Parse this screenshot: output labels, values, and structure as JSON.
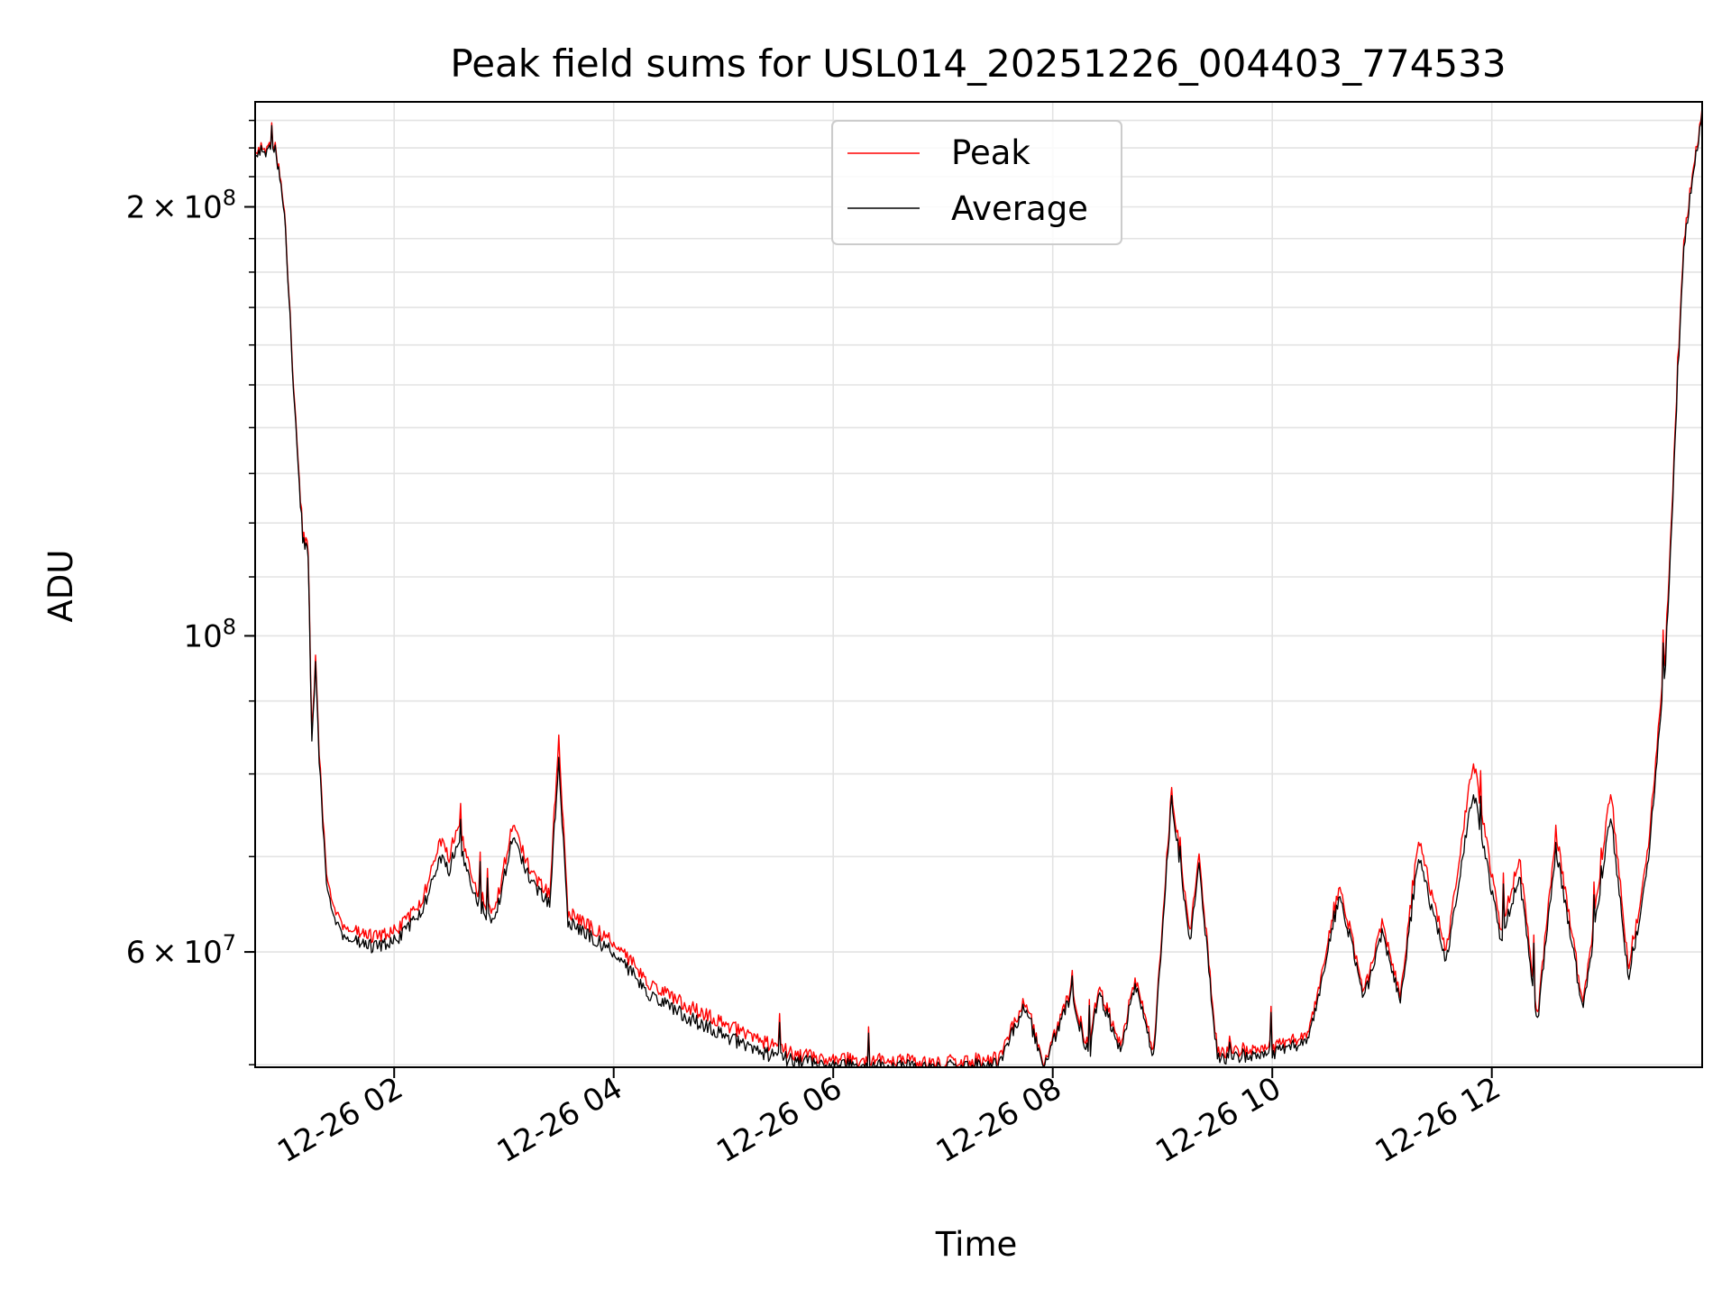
{
  "chart_data": {
    "type": "line",
    "title": "Peak field sums for USL014_20251226_004403_774533",
    "xlabel": "Time",
    "ylabel": "ADU",
    "y_scale": "log",
    "grid": true,
    "legend_position": "top-center",
    "xlim": [
      "2025-12-26 00:44",
      "2025-12-26 13:55"
    ],
    "ylim": [
      49800000,
      237000000
    ],
    "x_ticks": [
      "2025-12-26 02:00",
      "2025-12-26 04:00",
      "2025-12-26 06:00",
      "2025-12-26 08:00",
      "2025-12-26 10:00",
      "2025-12-26 12:00"
    ],
    "x_tick_labels": [
      "12-26 02",
      "12-26 04",
      "12-26 06",
      "12-26 08",
      "12-26 10",
      "12-26 12"
    ],
    "y_ticks": [
      60000000,
      100000000,
      200000000
    ],
    "y_tick_labels": [
      {
        "base": "6",
        "times": "×",
        "ten": "10",
        "exp": "7"
      },
      {
        "base": "",
        "times": "",
        "ten": "10",
        "exp": "8"
      },
      {
        "base": "2",
        "times": "×",
        "ten": "10",
        "exp": "8"
      }
    ],
    "series": [
      {
        "name": "Peak",
        "color": "#ff0000",
        "points": [
          [
            "2025-12-26 00:44",
            220000000
          ],
          [
            "2025-12-26 00:55",
            220000000
          ],
          [
            "2025-12-26 01:00",
            200000000
          ],
          [
            "2025-12-26 01:05",
            150000000
          ],
          [
            "2025-12-26 01:10",
            118000000
          ],
          [
            "2025-12-26 01:13",
            115000000
          ],
          [
            "2025-12-26 01:15",
            85000000
          ],
          [
            "2025-12-26 01:17",
            97000000
          ],
          [
            "2025-12-26 01:19",
            83000000
          ],
          [
            "2025-12-26 01:23",
            68000000
          ],
          [
            "2025-12-26 01:30",
            63000000
          ],
          [
            "2025-12-26 01:45",
            61500000
          ],
          [
            "2025-12-26 02:00",
            62000000
          ],
          [
            "2025-12-26 02:15",
            65000000
          ],
          [
            "2025-12-26 02:25",
            72000000
          ],
          [
            "2025-12-26 02:30",
            70000000
          ],
          [
            "2025-12-26 02:35",
            74000000
          ],
          [
            "2025-12-26 02:45",
            66000000
          ],
          [
            "2025-12-26 02:55",
            64000000
          ],
          [
            "2025-12-26 03:05",
            74000000
          ],
          [
            "2025-12-26 03:15",
            68000000
          ],
          [
            "2025-12-26 03:25",
            66000000
          ],
          [
            "2025-12-26 03:30",
            85000000
          ],
          [
            "2025-12-26 03:35",
            64000000
          ],
          [
            "2025-12-26 04:00",
            61000000
          ],
          [
            "2025-12-26 04:20",
            57000000
          ],
          [
            "2025-12-26 04:40",
            55000000
          ],
          [
            "2025-12-26 05:00",
            53500000
          ],
          [
            "2025-12-26 05:20",
            52000000
          ],
          [
            "2025-12-26 05:40",
            50800000
          ],
          [
            "2025-12-26 06:00",
            50500000
          ],
          [
            "2025-12-26 06:30",
            50400000
          ],
          [
            "2025-12-26 07:00",
            50200000
          ],
          [
            "2025-12-26 07:30",
            50500000
          ],
          [
            "2025-12-26 07:45",
            55500000
          ],
          [
            "2025-12-26 07:55",
            50000000
          ],
          [
            "2025-12-26 08:10",
            56500000
          ],
          [
            "2025-12-26 08:20",
            51000000
          ],
          [
            "2025-12-26 08:25",
            57000000
          ],
          [
            "2025-12-26 08:37",
            51500000
          ],
          [
            "2025-12-26 08:45",
            57500000
          ],
          [
            "2025-12-26 08:55",
            51000000
          ],
          [
            "2025-12-26 09:05",
            78000000
          ],
          [
            "2025-12-26 09:15",
            62000000
          ],
          [
            "2025-12-26 09:20",
            70000000
          ],
          [
            "2025-12-26 09:30",
            51000000
          ],
          [
            "2025-12-26 10:00",
            51500000
          ],
          [
            "2025-12-26 10:20",
            52500000
          ],
          [
            "2025-12-26 10:37",
            67000000
          ],
          [
            "2025-12-26 10:50",
            56000000
          ],
          [
            "2025-12-26 11:00",
            63000000
          ],
          [
            "2025-12-26 11:10",
            56000000
          ],
          [
            "2025-12-26 11:20",
            72000000
          ],
          [
            "2025-12-26 11:35",
            60000000
          ],
          [
            "2025-12-26 11:50",
            82000000
          ],
          [
            "2025-12-26 12:05",
            62000000
          ],
          [
            "2025-12-26 12:15",
            70000000
          ],
          [
            "2025-12-26 12:25",
            54000000
          ],
          [
            "2025-12-26 12:35",
            73000000
          ],
          [
            "2025-12-26 12:50",
            55000000
          ],
          [
            "2025-12-26 13:05",
            78000000
          ],
          [
            "2025-12-26 13:15",
            58000000
          ],
          [
            "2025-12-26 13:25",
            70000000
          ],
          [
            "2025-12-26 13:35",
            98000000
          ],
          [
            "2025-12-26 13:45",
            190000000
          ],
          [
            "2025-12-26 13:55",
            235000000
          ]
        ]
      },
      {
        "name": "Average",
        "color": "#000000",
        "points": [
          [
            "2025-12-26 00:44",
            219000000
          ],
          [
            "2025-12-26 00:55",
            219000000
          ],
          [
            "2025-12-26 01:00",
            199000000
          ],
          [
            "2025-12-26 01:05",
            149000000
          ],
          [
            "2025-12-26 01:10",
            117000000
          ],
          [
            "2025-12-26 01:13",
            114000000
          ],
          [
            "2025-12-26 01:15",
            84000000
          ],
          [
            "2025-12-26 01:17",
            96000000
          ],
          [
            "2025-12-26 01:19",
            82000000
          ],
          [
            "2025-12-26 01:23",
            67000000
          ],
          [
            "2025-12-26 01:30",
            62000000
          ],
          [
            "2025-12-26 01:45",
            60500000
          ],
          [
            "2025-12-26 02:00",
            61000000
          ],
          [
            "2025-12-26 02:15",
            64000000
          ],
          [
            "2025-12-26 02:25",
            70000000
          ],
          [
            "2025-12-26 02:30",
            68500000
          ],
          [
            "2025-12-26 02:35",
            72000000
          ],
          [
            "2025-12-26 02:45",
            65000000
          ],
          [
            "2025-12-26 02:55",
            63000000
          ],
          [
            "2025-12-26 03:05",
            72500000
          ],
          [
            "2025-12-26 03:15",
            67000000
          ],
          [
            "2025-12-26 03:25",
            65000000
          ],
          [
            "2025-12-26 03:30",
            82000000
          ],
          [
            "2025-12-26 03:35",
            63000000
          ],
          [
            "2025-12-26 04:00",
            60000000
          ],
          [
            "2025-12-26 04:20",
            56000000
          ],
          [
            "2025-12-26 04:40",
            54000000
          ],
          [
            "2025-12-26 05:00",
            52500000
          ],
          [
            "2025-12-26 05:20",
            51000000
          ],
          [
            "2025-12-26 05:40",
            50300000
          ],
          [
            "2025-12-26 06:00",
            50000000
          ],
          [
            "2025-12-26 06:30",
            49900000
          ],
          [
            "2025-12-26 07:00",
            49800000
          ],
          [
            "2025-12-26 07:30",
            50000000
          ],
          [
            "2025-12-26 07:45",
            55000000
          ],
          [
            "2025-12-26 07:55",
            49800000
          ],
          [
            "2025-12-26 08:10",
            56000000
          ],
          [
            "2025-12-26 08:20",
            50500000
          ],
          [
            "2025-12-26 08:25",
            56500000
          ],
          [
            "2025-12-26 08:37",
            51000000
          ],
          [
            "2025-12-26 08:45",
            57000000
          ],
          [
            "2025-12-26 08:55",
            50500000
          ],
          [
            "2025-12-26 09:05",
            77000000
          ],
          [
            "2025-12-26 09:15",
            61000000
          ],
          [
            "2025-12-26 09:20",
            69000000
          ],
          [
            "2025-12-26 09:30",
            50500000
          ],
          [
            "2025-12-26 10:00",
            51000000
          ],
          [
            "2025-12-26 10:20",
            52000000
          ],
          [
            "2025-12-26 10:37",
            66000000
          ],
          [
            "2025-12-26 10:50",
            55500000
          ],
          [
            "2025-12-26 11:00",
            62000000
          ],
          [
            "2025-12-26 11:10",
            55500000
          ],
          [
            "2025-12-26 11:20",
            70000000
          ],
          [
            "2025-12-26 11:35",
            59000000
          ],
          [
            "2025-12-26 11:50",
            78000000
          ],
          [
            "2025-12-26 12:05",
            61000000
          ],
          [
            "2025-12-26 12:15",
            68000000
          ],
          [
            "2025-12-26 12:25",
            53500000
          ],
          [
            "2025-12-26 12:35",
            71000000
          ],
          [
            "2025-12-26 12:50",
            54500000
          ],
          [
            "2025-12-26 13:05",
            75000000
          ],
          [
            "2025-12-26 13:15",
            57000000
          ],
          [
            "2025-12-26 13:25",
            68500000
          ],
          [
            "2025-12-26 13:35",
            96000000
          ],
          [
            "2025-12-26 13:45",
            188000000
          ],
          [
            "2025-12-26 13:55",
            234000000
          ]
        ]
      }
    ]
  }
}
